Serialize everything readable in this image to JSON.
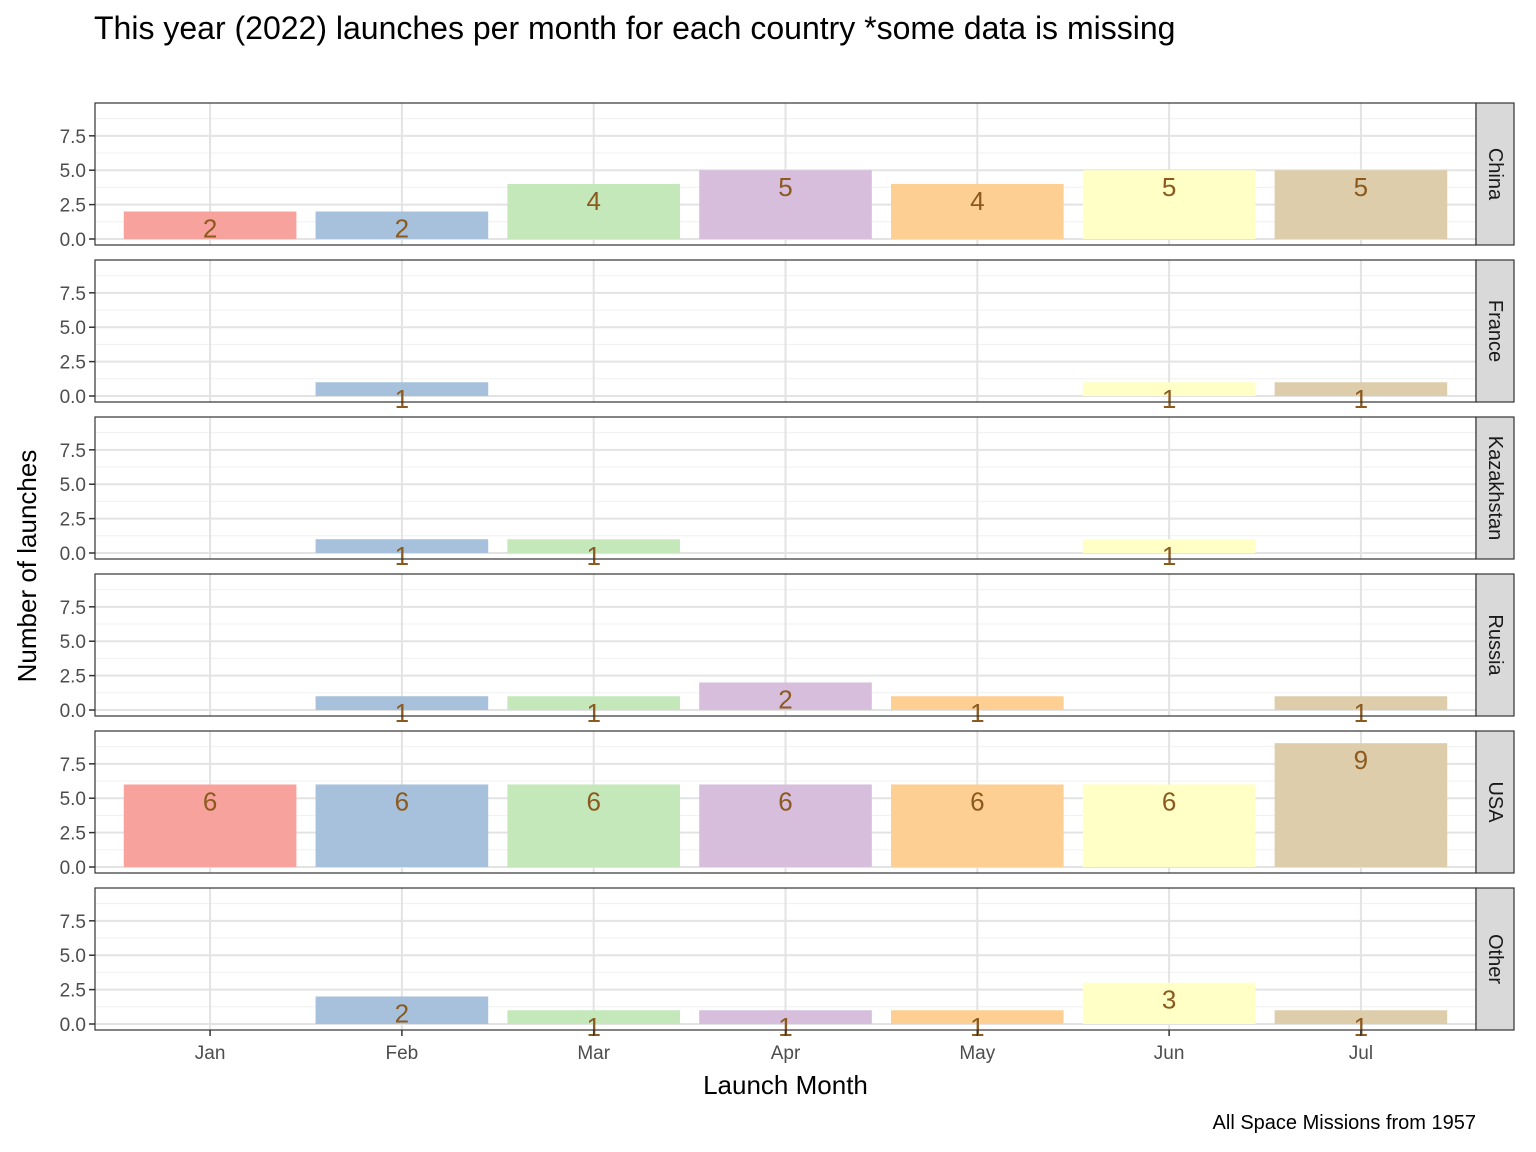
{
  "chart_data": {
    "type": "bar",
    "title": "This year (2022) launches per month for each country *some data is missing",
    "caption": "All Space Missions from 1957",
    "xlabel": "Launch Month",
    "ylabel": "Number of launches",
    "categories": [
      "Jan",
      "Feb",
      "Mar",
      "Apr",
      "May",
      "Jun",
      "Jul"
    ],
    "ylim": [
      0,
      9.45
    ],
    "yticks": [
      "0.0",
      "2.5",
      "5.0",
      "7.5"
    ],
    "grid": true,
    "legend": "none",
    "colors": [
      "#f8a29e",
      "#a7c1dc",
      "#c4e8ba",
      "#d6bedc",
      "#fecf92",
      "#ffffc6",
      "#ddcdab"
    ],
    "label_color": "#8c5a1f",
    "facets": [
      {
        "name": "China",
        "values": [
          2,
          2,
          4,
          5,
          4,
          5,
          5
        ]
      },
      {
        "name": "France",
        "values": [
          null,
          1,
          null,
          null,
          null,
          1,
          1
        ]
      },
      {
        "name": "Kazakhstan",
        "values": [
          null,
          1,
          1,
          null,
          null,
          1,
          null
        ]
      },
      {
        "name": "Russia",
        "values": [
          null,
          1,
          1,
          2,
          1,
          null,
          1
        ]
      },
      {
        "name": "USA",
        "values": [
          6,
          6,
          6,
          6,
          6,
          6,
          9
        ]
      },
      {
        "name": "Other",
        "values": [
          null,
          2,
          1,
          1,
          1,
          3,
          1
        ]
      }
    ]
  }
}
